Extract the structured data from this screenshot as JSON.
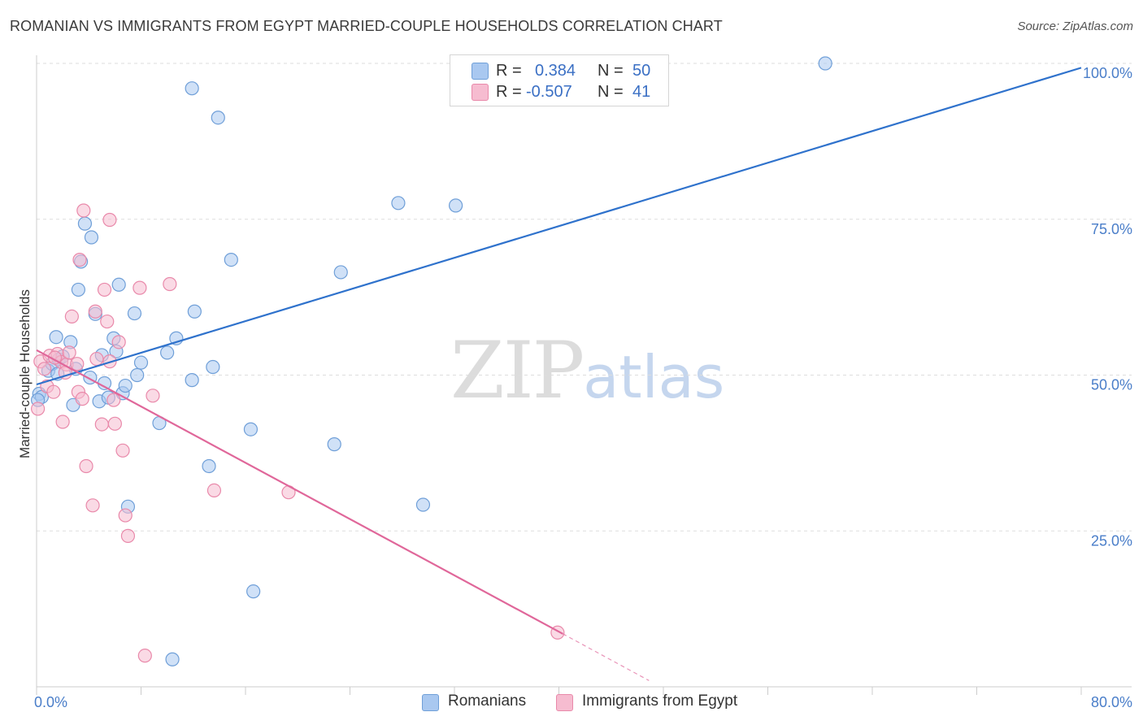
{
  "title": "ROMANIAN VS IMMIGRANTS FROM EGYPT MARRIED-COUPLE HOUSEHOLDS CORRELATION CHART",
  "source": "Source: ZipAtlas.com",
  "watermark": {
    "zip": "ZIP",
    "atlas": "atlas"
  },
  "legend_top": {
    "rows": [
      {
        "r_label": "R =",
        "r_value": "0.384",
        "n_label": "N =",
        "n_value": "50",
        "color": "#a9c8f0"
      },
      {
        "r_label": "R =",
        "r_value": "-0.507",
        "n_label": "N =",
        "n_value": "41",
        "color": "#f6bcd0"
      }
    ]
  },
  "bottom_legend": {
    "romanians": "Romanians",
    "egypt": "Immigrants from Egypt"
  },
  "colors": {
    "blue_fill": "#a9c8f0",
    "blue_stroke": "#6f9fd8",
    "blue_line": "#2f72cc",
    "pink_fill": "#f6bcd0",
    "pink_stroke": "#e989aa",
    "pink_line": "#e0679a",
    "grid": "#dddddd",
    "axis_text": "#4a7ec9"
  },
  "chart_data": {
    "type": "scatter",
    "title": "ROMANIAN VS IMMIGRANTS FROM EGYPT MARRIED-COUPLE HOUSEHOLDS CORRELATION CHART",
    "xlabel": "",
    "ylabel": "Married-couple Households",
    "xlim": [
      0,
      80
    ],
    "ylim": [
      0,
      100
    ],
    "x_tick_labels": [
      "0.0%",
      "80.0%"
    ],
    "y_tick_labels": [
      "25.0%",
      "50.0%",
      "75.0%",
      "100.0%"
    ],
    "y_ticks": [
      25,
      50,
      75,
      100
    ],
    "grid": true,
    "legend_placement": "bottom-center",
    "series": [
      {
        "name": "Romanians",
        "R": 0.384,
        "N": 50,
        "trend": {
          "x": [
            0,
            80
          ],
          "y": [
            48.5,
            99.3
          ]
        },
        "points": [
          [
            0.2,
            47.0
          ],
          [
            0.4,
            46.5
          ],
          [
            0.9,
            50.7
          ],
          [
            1.2,
            51.8
          ],
          [
            1.5,
            56.1
          ],
          [
            1.6,
            50.2
          ],
          [
            1.7,
            52.5
          ],
          [
            2.6,
            55.3
          ],
          [
            2.8,
            45.2
          ],
          [
            3.2,
            63.7
          ],
          [
            3.4,
            68.2
          ],
          [
            3.7,
            74.3
          ],
          [
            4.2,
            72.1
          ],
          [
            4.1,
            49.6
          ],
          [
            4.5,
            59.8
          ],
          [
            4.8,
            45.8
          ],
          [
            5.0,
            53.2
          ],
          [
            5.2,
            48.7
          ],
          [
            5.5,
            46.4
          ],
          [
            5.9,
            55.9
          ],
          [
            6.1,
            53.8
          ],
          [
            6.3,
            64.5
          ],
          [
            6.6,
            47.1
          ],
          [
            6.8,
            48.3
          ],
          [
            7.0,
            28.9
          ],
          [
            7.5,
            59.9
          ],
          [
            7.7,
            50.0
          ],
          [
            8.0,
            52.0
          ],
          [
            9.4,
            42.3
          ],
          [
            10.0,
            53.6
          ],
          [
            10.7,
            55.9
          ],
          [
            11.9,
            96.0
          ],
          [
            11.9,
            49.2
          ],
          [
            12.1,
            60.2
          ],
          [
            13.5,
            51.3
          ],
          [
            13.9,
            91.3
          ],
          [
            13.2,
            35.4
          ],
          [
            14.9,
            68.5
          ],
          [
            16.4,
            41.3
          ],
          [
            16.6,
            15.3
          ],
          [
            22.8,
            38.9
          ],
          [
            23.3,
            66.5
          ],
          [
            27.7,
            77.6
          ],
          [
            29.6,
            29.2
          ],
          [
            32.1,
            77.2
          ],
          [
            60.4,
            100.0
          ],
          [
            10.4,
            4.4
          ],
          [
            0.1,
            46.0
          ],
          [
            2.0,
            53.0
          ],
          [
            3.0,
            51.0
          ]
        ]
      },
      {
        "name": "Immigrants from Egypt",
        "R": -0.507,
        "N": 41,
        "trend": {
          "x": [
            0,
            40.3
          ],
          "y": [
            54.0,
            8.5
          ]
        },
        "trend_extension": {
          "x": [
            40.3,
            46.9
          ],
          "y": [
            8.5,
            1.0
          ]
        },
        "points": [
          [
            0.1,
            44.6
          ],
          [
            0.3,
            52.2
          ],
          [
            0.6,
            51.0
          ],
          [
            0.8,
            48.2
          ],
          [
            1.0,
            53.1
          ],
          [
            1.3,
            47.3
          ],
          [
            1.6,
            53.4
          ],
          [
            1.9,
            52.1
          ],
          [
            2.0,
            42.5
          ],
          [
            2.3,
            51.7
          ],
          [
            2.5,
            53.6
          ],
          [
            2.7,
            59.4
          ],
          [
            3.1,
            51.8
          ],
          [
            3.2,
            47.3
          ],
          [
            3.3,
            68.5
          ],
          [
            3.5,
            46.2
          ],
          [
            3.6,
            76.4
          ],
          [
            3.8,
            35.4
          ],
          [
            4.3,
            29.1
          ],
          [
            4.5,
            60.2
          ],
          [
            4.6,
            52.6
          ],
          [
            5.0,
            42.1
          ],
          [
            5.2,
            63.7
          ],
          [
            5.4,
            58.6
          ],
          [
            5.6,
            52.2
          ],
          [
            5.6,
            74.9
          ],
          [
            5.9,
            46.0
          ],
          [
            6.0,
            42.2
          ],
          [
            6.3,
            55.3
          ],
          [
            6.6,
            37.9
          ],
          [
            6.8,
            27.5
          ],
          [
            7.0,
            24.2
          ],
          [
            7.9,
            64.0
          ],
          [
            8.3,
            5.0
          ],
          [
            8.9,
            46.7
          ],
          [
            10.2,
            64.6
          ],
          [
            13.6,
            31.5
          ],
          [
            19.3,
            31.2
          ],
          [
            39.9,
            8.7
          ],
          [
            1.4,
            52.8
          ],
          [
            2.2,
            50.4
          ]
        ]
      }
    ]
  }
}
